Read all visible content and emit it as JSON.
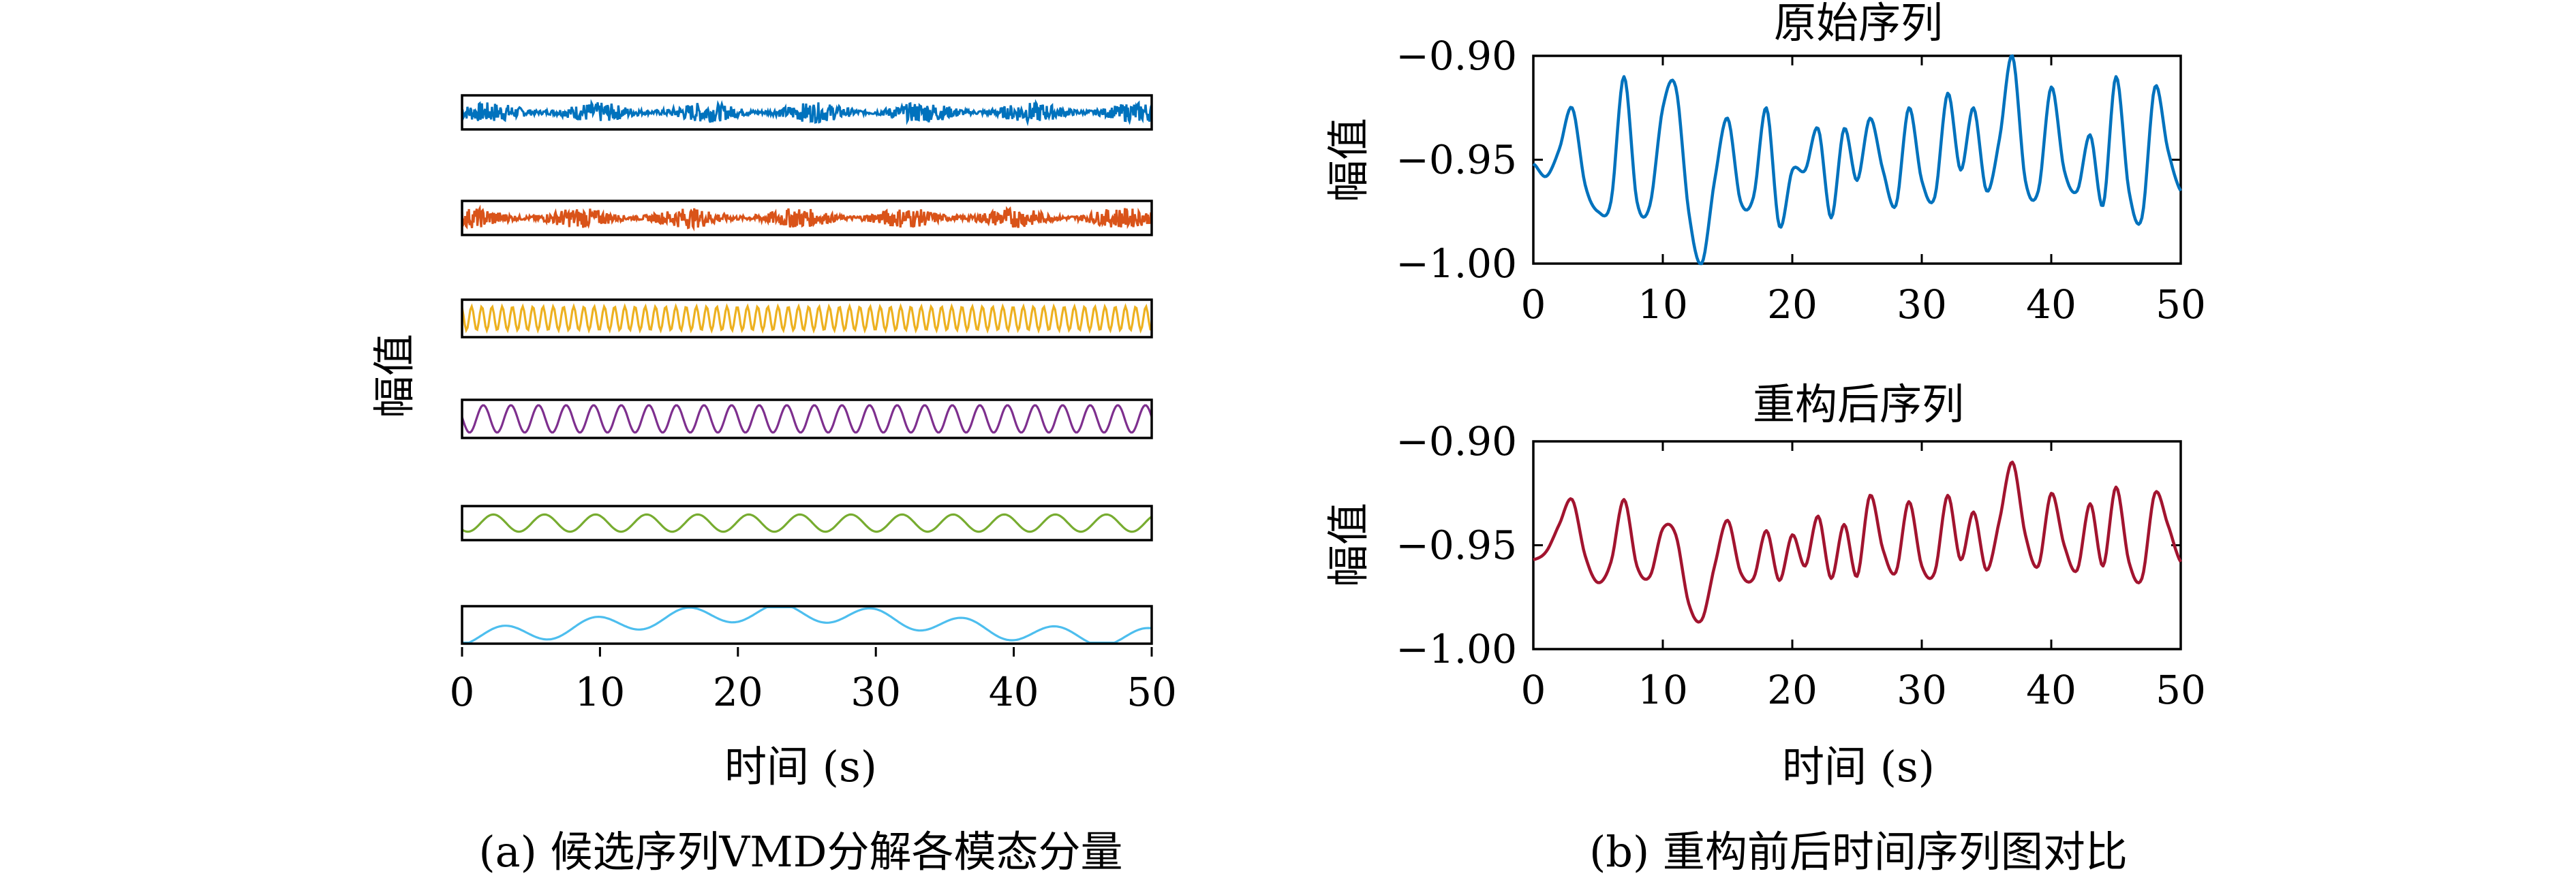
{
  "chart_data": [
    {
      "type": "line",
      "panel": "a",
      "caption": "(a) 候选序列VMD分解各模态分量",
      "xlabel": "时间 (s)",
      "ylabel": "幅值",
      "xlim": [
        0,
        50
      ],
      "x_ticks": [
        "0",
        "10",
        "20",
        "30",
        "40",
        "50"
      ],
      "colors": [
        "#0072BD",
        "#D95319",
        "#EDB120",
        "#7E2F8E",
        "#77AC30",
        "#4DBEEE"
      ],
      "modes": [
        {
          "amp": 0.5,
          "noise": 0.9,
          "segs": [
            [
              0,
              0.05,
              0.3
            ]
          ]
        },
        {
          "amp": 0.5,
          "noise": 0.9,
          "segs": [
            [
              0,
              0.05,
              0.3
            ]
          ]
        },
        {
          "amp": 0.6,
          "noise": 0.0,
          "segs": [
            [
              0,
              1.35,
              0.8
            ]
          ]
        },
        {
          "amp": 0.6,
          "noise": 0.0,
          "segs": [
            [
              0,
              0.5,
              0.9
            ]
          ]
        },
        {
          "amp": 0.95,
          "noise": 0.0,
          "segs": [
            [
              0,
              0.27,
              0.4
            ]
          ]
        },
        {
          "amp": 0.7,
          "noise": 0.0,
          "segs": [
            [
              0,
              0.15,
              0.5
            ],
            [
              0,
              0.02,
              0.7
            ]
          ]
        }
      ]
    },
    {
      "type": "line",
      "panel": "b-top",
      "title": "原始序列",
      "ylabel": "幅值",
      "xlim": [
        0,
        50
      ],
      "ylim": [
        -1.0,
        -0.9
      ],
      "x_ticks": [
        "0",
        "10",
        "20",
        "30",
        "40",
        "50"
      ],
      "y_ticks": [
        "−0.90",
        "−0.95",
        "−1.00"
      ],
      "color": "#0072BD",
      "x": [
        0,
        1,
        2,
        3,
        4,
        5,
        6,
        7,
        8,
        9,
        10,
        11,
        12,
        13,
        14,
        15,
        16,
        17,
        18,
        19,
        20,
        21,
        22,
        23,
        24,
        25,
        26,
        27,
        28,
        29,
        30,
        31,
        32,
        33,
        34,
        35,
        36,
        37,
        38,
        39,
        40,
        41,
        42,
        43,
        44,
        45,
        46,
        47,
        48,
        49,
        50
      ],
      "y": [
        -0.952,
        -0.958,
        -0.945,
        -0.925,
        -0.962,
        -0.975,
        -0.97,
        -0.91,
        -0.97,
        -0.972,
        -0.925,
        -0.915,
        -0.975,
        -1.0,
        -0.96,
        -0.93,
        -0.97,
        -0.968,
        -0.925,
        -0.982,
        -0.955,
        -0.955,
        -0.935,
        -0.978,
        -0.935,
        -0.96,
        -0.93,
        -0.955,
        -0.972,
        -0.925,
        -0.96,
        -0.968,
        -0.918,
        -0.955,
        -0.925,
        -0.965,
        -0.94,
        -0.9,
        -0.96,
        -0.965,
        -0.915,
        -0.955,
        -0.965,
        -0.938,
        -0.972,
        -0.91,
        -0.965,
        -0.978,
        -0.915,
        -0.945,
        -0.965
      ]
    },
    {
      "type": "line",
      "panel": "b-bottom",
      "title": "重构后序列",
      "ylabel": "幅值",
      "xlabel": "时间 (s)",
      "xlim": [
        0,
        50
      ],
      "ylim": [
        -1.0,
        -0.9
      ],
      "x_ticks": [
        "0",
        "10",
        "20",
        "30",
        "40",
        "50"
      ],
      "y_ticks": [
        "−0.90",
        "−0.95",
        "−1.00"
      ],
      "color": "#A2142F",
      "x": [
        0,
        1,
        2,
        3,
        4,
        5,
        6,
        7,
        8,
        9,
        10,
        11,
        12,
        13,
        14,
        15,
        16,
        17,
        18,
        19,
        20,
        21,
        22,
        23,
        24,
        25,
        26,
        27,
        28,
        29,
        30,
        31,
        32,
        33,
        34,
        35,
        36,
        37,
        38,
        39,
        40,
        41,
        42,
        43,
        44,
        45,
        46,
        47,
        48,
        49,
        50
      ],
      "y": [
        -0.957,
        -0.953,
        -0.94,
        -0.928,
        -0.955,
        -0.968,
        -0.958,
        -0.928,
        -0.96,
        -0.965,
        -0.942,
        -0.945,
        -0.978,
        -0.986,
        -0.96,
        -0.938,
        -0.963,
        -0.966,
        -0.943,
        -0.967,
        -0.945,
        -0.96,
        -0.936,
        -0.966,
        -0.94,
        -0.965,
        -0.926,
        -0.952,
        -0.963,
        -0.929,
        -0.96,
        -0.963,
        -0.926,
        -0.957,
        -0.934,
        -0.962,
        -0.938,
        -0.91,
        -0.945,
        -0.96,
        -0.925,
        -0.95,
        -0.962,
        -0.93,
        -0.96,
        -0.922,
        -0.958,
        -0.966,
        -0.925,
        -0.94,
        -0.958
      ]
    }
  ],
  "captions": {
    "a": "(a) 候选序列VMD分解各模态分量",
    "b": "(b) 重构前后时间序列图对比"
  }
}
